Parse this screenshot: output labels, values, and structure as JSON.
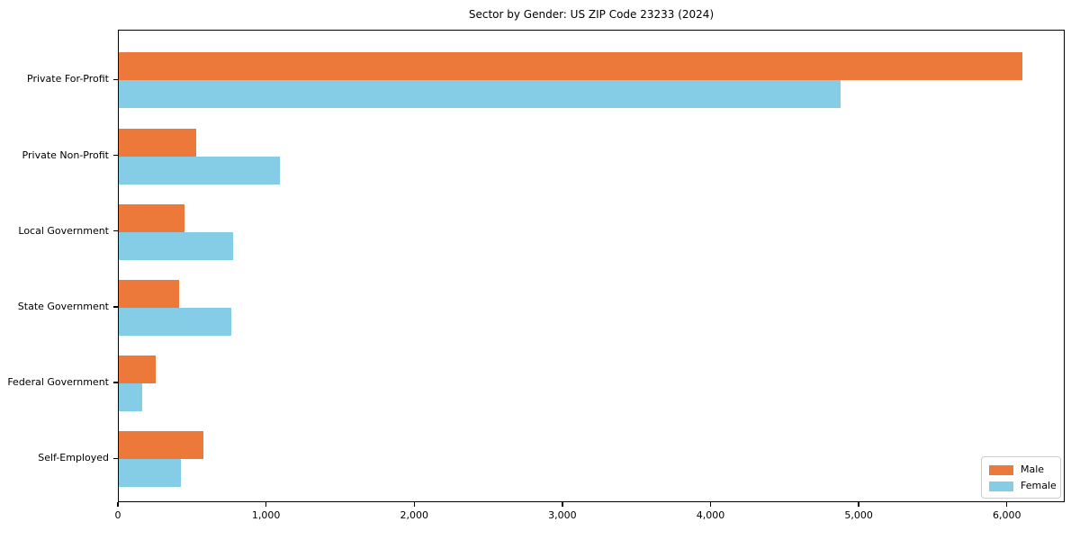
{
  "chart_data": {
    "type": "bar",
    "orientation": "horizontal",
    "title": "Sector by Gender: US ZIP Code 23233 (2024)",
    "categories": [
      "Private For-Profit",
      "Private Non-Profit",
      "Local Government",
      "State Government",
      "Federal Government",
      "Self-Employed"
    ],
    "series": [
      {
        "name": "Male",
        "color": "#ec7839",
        "values": [
          6100,
          520,
          445,
          410,
          250,
          570
        ]
      },
      {
        "name": "Female",
        "color": "#85cde6",
        "values": [
          4870,
          1090,
          770,
          760,
          155,
          420
        ]
      }
    ],
    "xlabel": "",
    "ylabel": "",
    "xlim": [
      0,
      6390
    ],
    "xticks": {
      "values": [
        0,
        1000,
        2000,
        3000,
        4000,
        5000,
        6000
      ],
      "labels": [
        "0",
        "1,000",
        "2,000",
        "3,000",
        "4,000",
        "5,000",
        "6,000"
      ]
    },
    "grid": false,
    "legend": {
      "position": "lower right",
      "entries": [
        "Male",
        "Female"
      ]
    }
  }
}
